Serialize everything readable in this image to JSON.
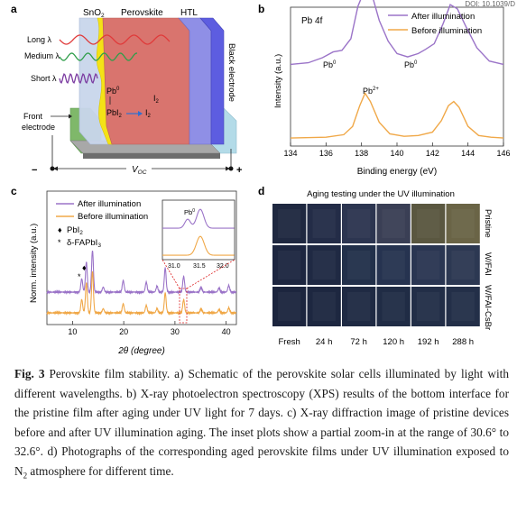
{
  "doi": "DOI: 10.1039/D",
  "panel_a": {
    "label": "a",
    "layers": [
      "SnO",
      "Perovskite",
      "HTL"
    ],
    "sno2_sub": "2",
    "black_electrode": "Black electrode",
    "front_electrode_line1": "Front",
    "front_electrode_line2": "electrode",
    "waves": [
      "Long λ",
      "Medium λ",
      "Short λ"
    ],
    "pb0": "Pb",
    "pb0_sup": "0",
    "pbi2": "PbI",
    "pbi2_sub": "2",
    "i2": "I",
    "i2_sub": "2",
    "minus": "−",
    "plus": "+",
    "voc": "V",
    "voc_sub": "OC",
    "colors": {
      "sno2": "#c9d6ec",
      "perovskite": "#d9746e",
      "htl": "#8f8fe6",
      "yellow": "#f4e216",
      "front": "#7fb86a",
      "back": "#b3dbe8"
    }
  },
  "panel_b": {
    "label": "b",
    "title": "Pb 4f",
    "ylabel": "Intensity (a.u.)",
    "xlabel": "Binding energy (eV)",
    "ann_pb0": "Pb",
    "ann_pb0_sup": "0",
    "ann_pb2": "Pb",
    "ann_pb2_sup": "2+",
    "chart_data": {
      "type": "line",
      "xlim": [
        134,
        146
      ],
      "xticks": [
        "134",
        "136",
        "138",
        "140",
        "142",
        "144",
        "146"
      ],
      "series": [
        {
          "name": "After illumination",
          "color": "#9b74c8",
          "x": [
            134.0,
            135.0,
            135.8,
            136.4,
            136.9,
            137.4,
            137.8,
            138.2,
            138.6,
            139.0,
            139.5,
            140.0,
            140.6,
            141.2,
            141.6,
            142.1,
            142.6,
            143.0,
            143.4,
            143.9,
            144.5,
            145.2,
            146.0
          ],
          "y": [
            0.05,
            0.07,
            0.13,
            0.2,
            0.22,
            0.36,
            0.75,
            0.96,
            0.88,
            0.58,
            0.33,
            0.18,
            0.14,
            0.18,
            0.23,
            0.3,
            0.54,
            0.77,
            0.72,
            0.5,
            0.25,
            0.09,
            0.05
          ]
        },
        {
          "name": "Before illumination",
          "color": "#f0a848",
          "x": [
            134.0,
            136.0,
            137.0,
            137.5,
            137.9,
            138.2,
            138.5,
            139.0,
            139.6,
            140.4,
            141.2,
            142.0,
            142.5,
            142.9,
            143.2,
            143.5,
            144.0,
            144.6,
            145.3,
            146.0
          ],
          "y": [
            0.01,
            0.02,
            0.05,
            0.15,
            0.4,
            0.55,
            0.45,
            0.2,
            0.06,
            0.03,
            0.04,
            0.08,
            0.22,
            0.4,
            0.45,
            0.38,
            0.15,
            0.04,
            0.02,
            0.01
          ]
        }
      ]
    }
  },
  "panel_c": {
    "label": "c",
    "ylabel": "Norm. intensity (a.u.)",
    "xlabel": "2θ (degree)",
    "legend_pbi2": "PbI",
    "legend_pbi2_sub": "2",
    "legend_dfa": "δ-FAPbI",
    "legend_dfa_sub": "3",
    "inset_pb0": "Pb",
    "inset_pb0_sup": "0",
    "inset_xticks": [
      "31.0",
      "31.5",
      "32.0"
    ],
    "chart_data": {
      "type": "line",
      "xlim": [
        5,
        42
      ],
      "xticks": [
        "10",
        "20",
        "30",
        "40"
      ],
      "peaks": [
        {
          "pos": 11.8,
          "after": 0.32,
          "before": 0.32
        },
        {
          "pos": 12.7,
          "after": 0.72,
          "before": 0.72
        },
        {
          "pos": 13.9,
          "after": 1.0,
          "before": 1.0
        },
        {
          "pos": 16.0,
          "after": 0.12,
          "before": 0.1
        },
        {
          "pos": 19.9,
          "after": 0.28,
          "before": 0.22
        },
        {
          "pos": 24.4,
          "after": 0.24,
          "before": 0.18
        },
        {
          "pos": 26.5,
          "after": 0.14,
          "before": 0.1
        },
        {
          "pos": 28.1,
          "after": 0.58,
          "before": 0.48
        },
        {
          "pos": 31.7,
          "after": 0.38,
          "before": 0.32
        },
        {
          "pos": 35.1,
          "after": 0.12,
          "before": 0.1
        },
        {
          "pos": 38.6,
          "after": 0.1,
          "before": 0.08
        },
        {
          "pos": 40.5,
          "after": 0.16,
          "before": 0.12
        }
      ],
      "series": [
        {
          "name": "After illumination",
          "color": "#9b74c8"
        },
        {
          "name": "Before illumination",
          "color": "#f0a848"
        }
      ]
    }
  },
  "panel_d": {
    "label": "d",
    "title": "Aging testing under the UV illumination",
    "rows": [
      "Pristine",
      "W/FAI",
      "W/FAI-CsBr"
    ],
    "cols": [
      "Fresh",
      "24 h",
      "72 h",
      "120 h",
      "192 h",
      "288 h"
    ],
    "colors": [
      [
        "#1f2840",
        "#232c47",
        "#2c3550",
        "#3a3f55",
        "#5a5740",
        "#6a6446"
      ],
      [
        "#1d2640",
        "#1f2943",
        "#22304a",
        "#263350",
        "#2a3652",
        "#2c3852"
      ],
      [
        "#1c253e",
        "#1d2740",
        "#1f2a43",
        "#202c45",
        "#222e47",
        "#232f48"
      ]
    ]
  },
  "caption": {
    "fig": "Fig. 3",
    "text": " Perovskite film stability. a) Schematic of the perovskite solar cells illuminated by light with different wavelengths. b) X-ray photoelectron spectroscopy (XPS) results of the bottom interface for the pristine film after aging under UV light for 7 days. c) X-ray diffraction image of pristine devices before and after UV illumination aging. The inset plots show a partial zoom-in at the range of 30.6° to 32.6°. d) Photographs of the corresponding aged perovskite films under UV illumination exposed to N",
    "n2_sub": "2",
    "tail": " atmosphere for different time."
  }
}
